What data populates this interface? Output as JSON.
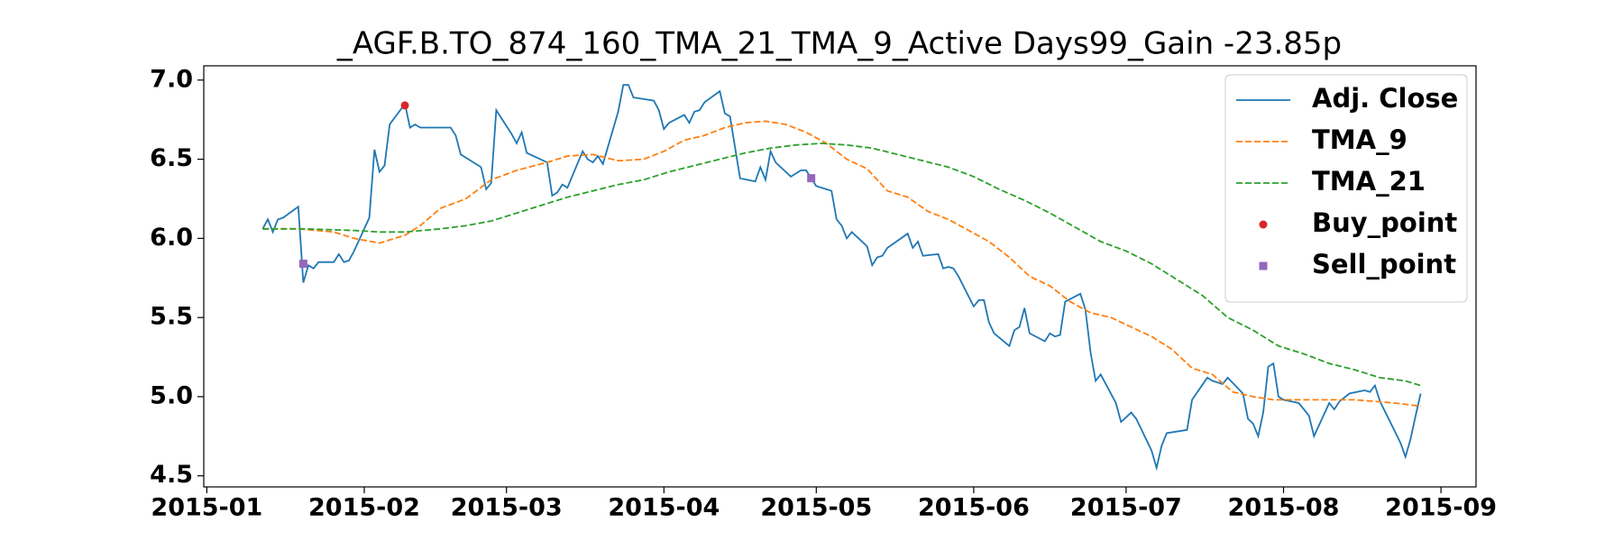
{
  "chart_data": {
    "type": "line",
    "title": "_AGF.B.TO_874_160_TMA_21_TMA_9_Active Days99_Gain -23.85p",
    "xlim": [
      0.4,
      250.9
    ],
    "xticks": [
      {
        "value": 1,
        "label": "2015-01"
      },
      {
        "value": 32,
        "label": "2015-02"
      },
      {
        "value": 60,
        "label": "2015-03"
      },
      {
        "value": 91,
        "label": "2015-04"
      },
      {
        "value": 121,
        "label": "2015-05"
      },
      {
        "value": 152,
        "label": "2015-06"
      },
      {
        "value": 182,
        "label": "2015-07"
      },
      {
        "value": 213,
        "label": "2015-08"
      },
      {
        "value": 244,
        "label": "2015-09"
      }
    ],
    "ylim": [
      4.43,
      7.09
    ],
    "yticks": [
      {
        "value": 4.5,
        "label": "4.5"
      },
      {
        "value": 5,
        "label": "5.0"
      },
      {
        "value": 5.5,
        "label": "5.5"
      },
      {
        "value": 6,
        "label": "6.0"
      },
      {
        "value": 6.5,
        "label": "6.5"
      },
      {
        "value": 7,
        "label": "7.0"
      }
    ],
    "legend": "upper right",
    "series": [
      {
        "name": "Adj. Close",
        "type": "line",
        "linestyle": "solid",
        "color": "#1f77b4",
        "x": [
          12,
          13,
          14,
          15,
          16,
          19,
          20,
          21,
          22,
          23,
          26,
          27,
          28,
          29,
          30,
          33,
          34,
          35,
          36,
          37,
          40,
          41,
          42,
          43,
          49,
          50,
          51,
          55,
          56,
          57,
          58,
          61,
          62,
          63,
          64,
          68,
          69,
          70,
          71,
          72,
          75,
          76,
          77,
          78,
          79,
          82,
          83,
          84,
          85,
          89,
          90,
          91,
          92,
          95,
          96,
          97,
          98,
          99,
          102,
          103,
          104,
          106,
          109,
          110,
          111,
          112,
          113,
          116,
          118,
          119,
          120,
          121,
          124,
          125,
          126,
          127,
          128,
          131,
          132,
          133,
          134,
          135,
          139,
          140,
          141,
          142,
          145,
          146,
          147,
          148,
          149,
          152,
          153,
          154,
          155,
          156,
          159,
          160,
          161,
          162,
          163,
          166,
          167,
          168,
          169,
          170,
          173,
          174,
          175,
          176,
          177,
          180,
          181,
          182,
          183,
          184,
          187,
          188,
          189,
          190,
          194,
          195,
          198,
          199,
          200,
          201,
          202,
          205,
          206,
          207,
          208,
          209,
          210,
          211,
          212,
          213,
          216,
          217,
          218,
          219,
          222,
          223,
          224,
          226,
          229,
          230,
          231,
          232,
          236,
          237,
          238,
          239,
          240
        ],
        "values": [
          6.06,
          6.12,
          6.04,
          6.12,
          6.13,
          6.2,
          5.72,
          5.83,
          5.81,
          5.85,
          5.85,
          5.9,
          5.85,
          5.86,
          5.92,
          6.13,
          6.56,
          6.42,
          6.46,
          6.72,
          6.85,
          6.7,
          6.72,
          6.7,
          6.7,
          6.65,
          6.53,
          6.45,
          6.31,
          6.35,
          6.81,
          6.66,
          6.6,
          6.67,
          6.54,
          6.48,
          6.27,
          6.29,
          6.34,
          6.32,
          6.55,
          6.5,
          6.48,
          6.52,
          6.47,
          6.8,
          6.97,
          6.97,
          6.89,
          6.87,
          6.81,
          6.69,
          6.73,
          6.78,
          6.73,
          6.8,
          6.81,
          6.86,
          6.93,
          6.79,
          6.77,
          6.38,
          6.36,
          6.45,
          6.37,
          6.55,
          6.48,
          6.39,
          6.43,
          6.43,
          6.38,
          6.33,
          6.3,
          6.12,
          6.08,
          6.0,
          6.04,
          5.95,
          5.83,
          5.88,
          5.89,
          5.94,
          6.03,
          5.94,
          5.98,
          5.89,
          5.9,
          5.81,
          5.82,
          5.81,
          5.76,
          5.57,
          5.61,
          5.61,
          5.47,
          5.4,
          5.32,
          5.42,
          5.44,
          5.56,
          5.4,
          5.35,
          5.4,
          5.38,
          5.39,
          5.6,
          5.65,
          5.55,
          5.28,
          5.1,
          5.14,
          4.96,
          4.84,
          4.87,
          4.9,
          4.86,
          4.66,
          4.55,
          4.69,
          4.77,
          4.79,
          4.98,
          5.12,
          5.1,
          5.09,
          5.08,
          5.12,
          5.02,
          4.86,
          4.83,
          4.75,
          4.9,
          5.19,
          5.21,
          5.0,
          4.98,
          4.96,
          4.92,
          4.88,
          4.75,
          4.96,
          4.92,
          4.97,
          5.02,
          5.04,
          5.03,
          5.07,
          4.97,
          4.71,
          4.62,
          4.73,
          4.88,
          5.02
        ]
      },
      {
        "name": "TMA_9",
        "type": "line",
        "linestyle": "dashed",
        "color": "#ff7f0e",
        "x": [
          12,
          19,
          26,
          30,
          35,
          40,
          43,
          47,
          52,
          57,
          62,
          68,
          72,
          77,
          82,
          87,
          91,
          95,
          99,
          103,
          107,
          111,
          115,
          119,
          123,
          127,
          131,
          135,
          139,
          143,
          147,
          151,
          155,
          159,
          163,
          167,
          171,
          175,
          179,
          183,
          187,
          191,
          195,
          199,
          203,
          207,
          211,
          215,
          219,
          223,
          227,
          231,
          235,
          240
        ],
        "values": [
          6.06,
          6.06,
          6.04,
          6.0,
          5.97,
          6.02,
          6.08,
          6.19,
          6.25,
          6.37,
          6.43,
          6.48,
          6.52,
          6.53,
          6.49,
          6.5,
          6.55,
          6.62,
          6.65,
          6.7,
          6.73,
          6.74,
          6.72,
          6.67,
          6.6,
          6.5,
          6.44,
          6.3,
          6.26,
          6.17,
          6.12,
          6.05,
          5.98,
          5.88,
          5.76,
          5.7,
          5.6,
          5.53,
          5.5,
          5.44,
          5.38,
          5.3,
          5.18,
          5.14,
          5.03,
          5.0,
          4.98,
          4.98,
          4.98,
          4.98,
          4.98,
          4.97,
          4.96,
          4.94
        ]
      },
      {
        "name": "TMA_21",
        "type": "line",
        "linestyle": "dashed",
        "color": "#2ca02c",
        "x": [
          12,
          20,
          30,
          35,
          40,
          47,
          52,
          57,
          62,
          67,
          72,
          77,
          82,
          87,
          92,
          97,
          102,
          107,
          112,
          117,
          122,
          127,
          132,
          137,
          142,
          147,
          152,
          157,
          162,
          167,
          172,
          177,
          182,
          187,
          192,
          197,
          202,
          207,
          212,
          217,
          222,
          227,
          232,
          237,
          240
        ],
        "values": [
          6.06,
          6.06,
          6.05,
          6.04,
          6.04,
          6.06,
          6.08,
          6.11,
          6.16,
          6.21,
          6.26,
          6.3,
          6.34,
          6.37,
          6.42,
          6.46,
          6.5,
          6.54,
          6.57,
          6.59,
          6.6,
          6.59,
          6.57,
          6.53,
          6.49,
          6.45,
          6.39,
          6.31,
          6.24,
          6.16,
          6.07,
          5.98,
          5.92,
          5.84,
          5.74,
          5.64,
          5.5,
          5.42,
          5.32,
          5.27,
          5.21,
          5.17,
          5.12,
          5.1,
          5.07
        ]
      },
      {
        "name": "Buy_point",
        "type": "scatter",
        "marker": "circle",
        "color": "#d62728",
        "x": [
          40
        ],
        "values": [
          6.84
        ]
      },
      {
        "name": "Sell_point",
        "type": "scatter",
        "marker": "square",
        "color": "#9467bd",
        "x": [
          20,
          120
        ],
        "values": [
          5.84,
          6.38
        ]
      }
    ]
  }
}
